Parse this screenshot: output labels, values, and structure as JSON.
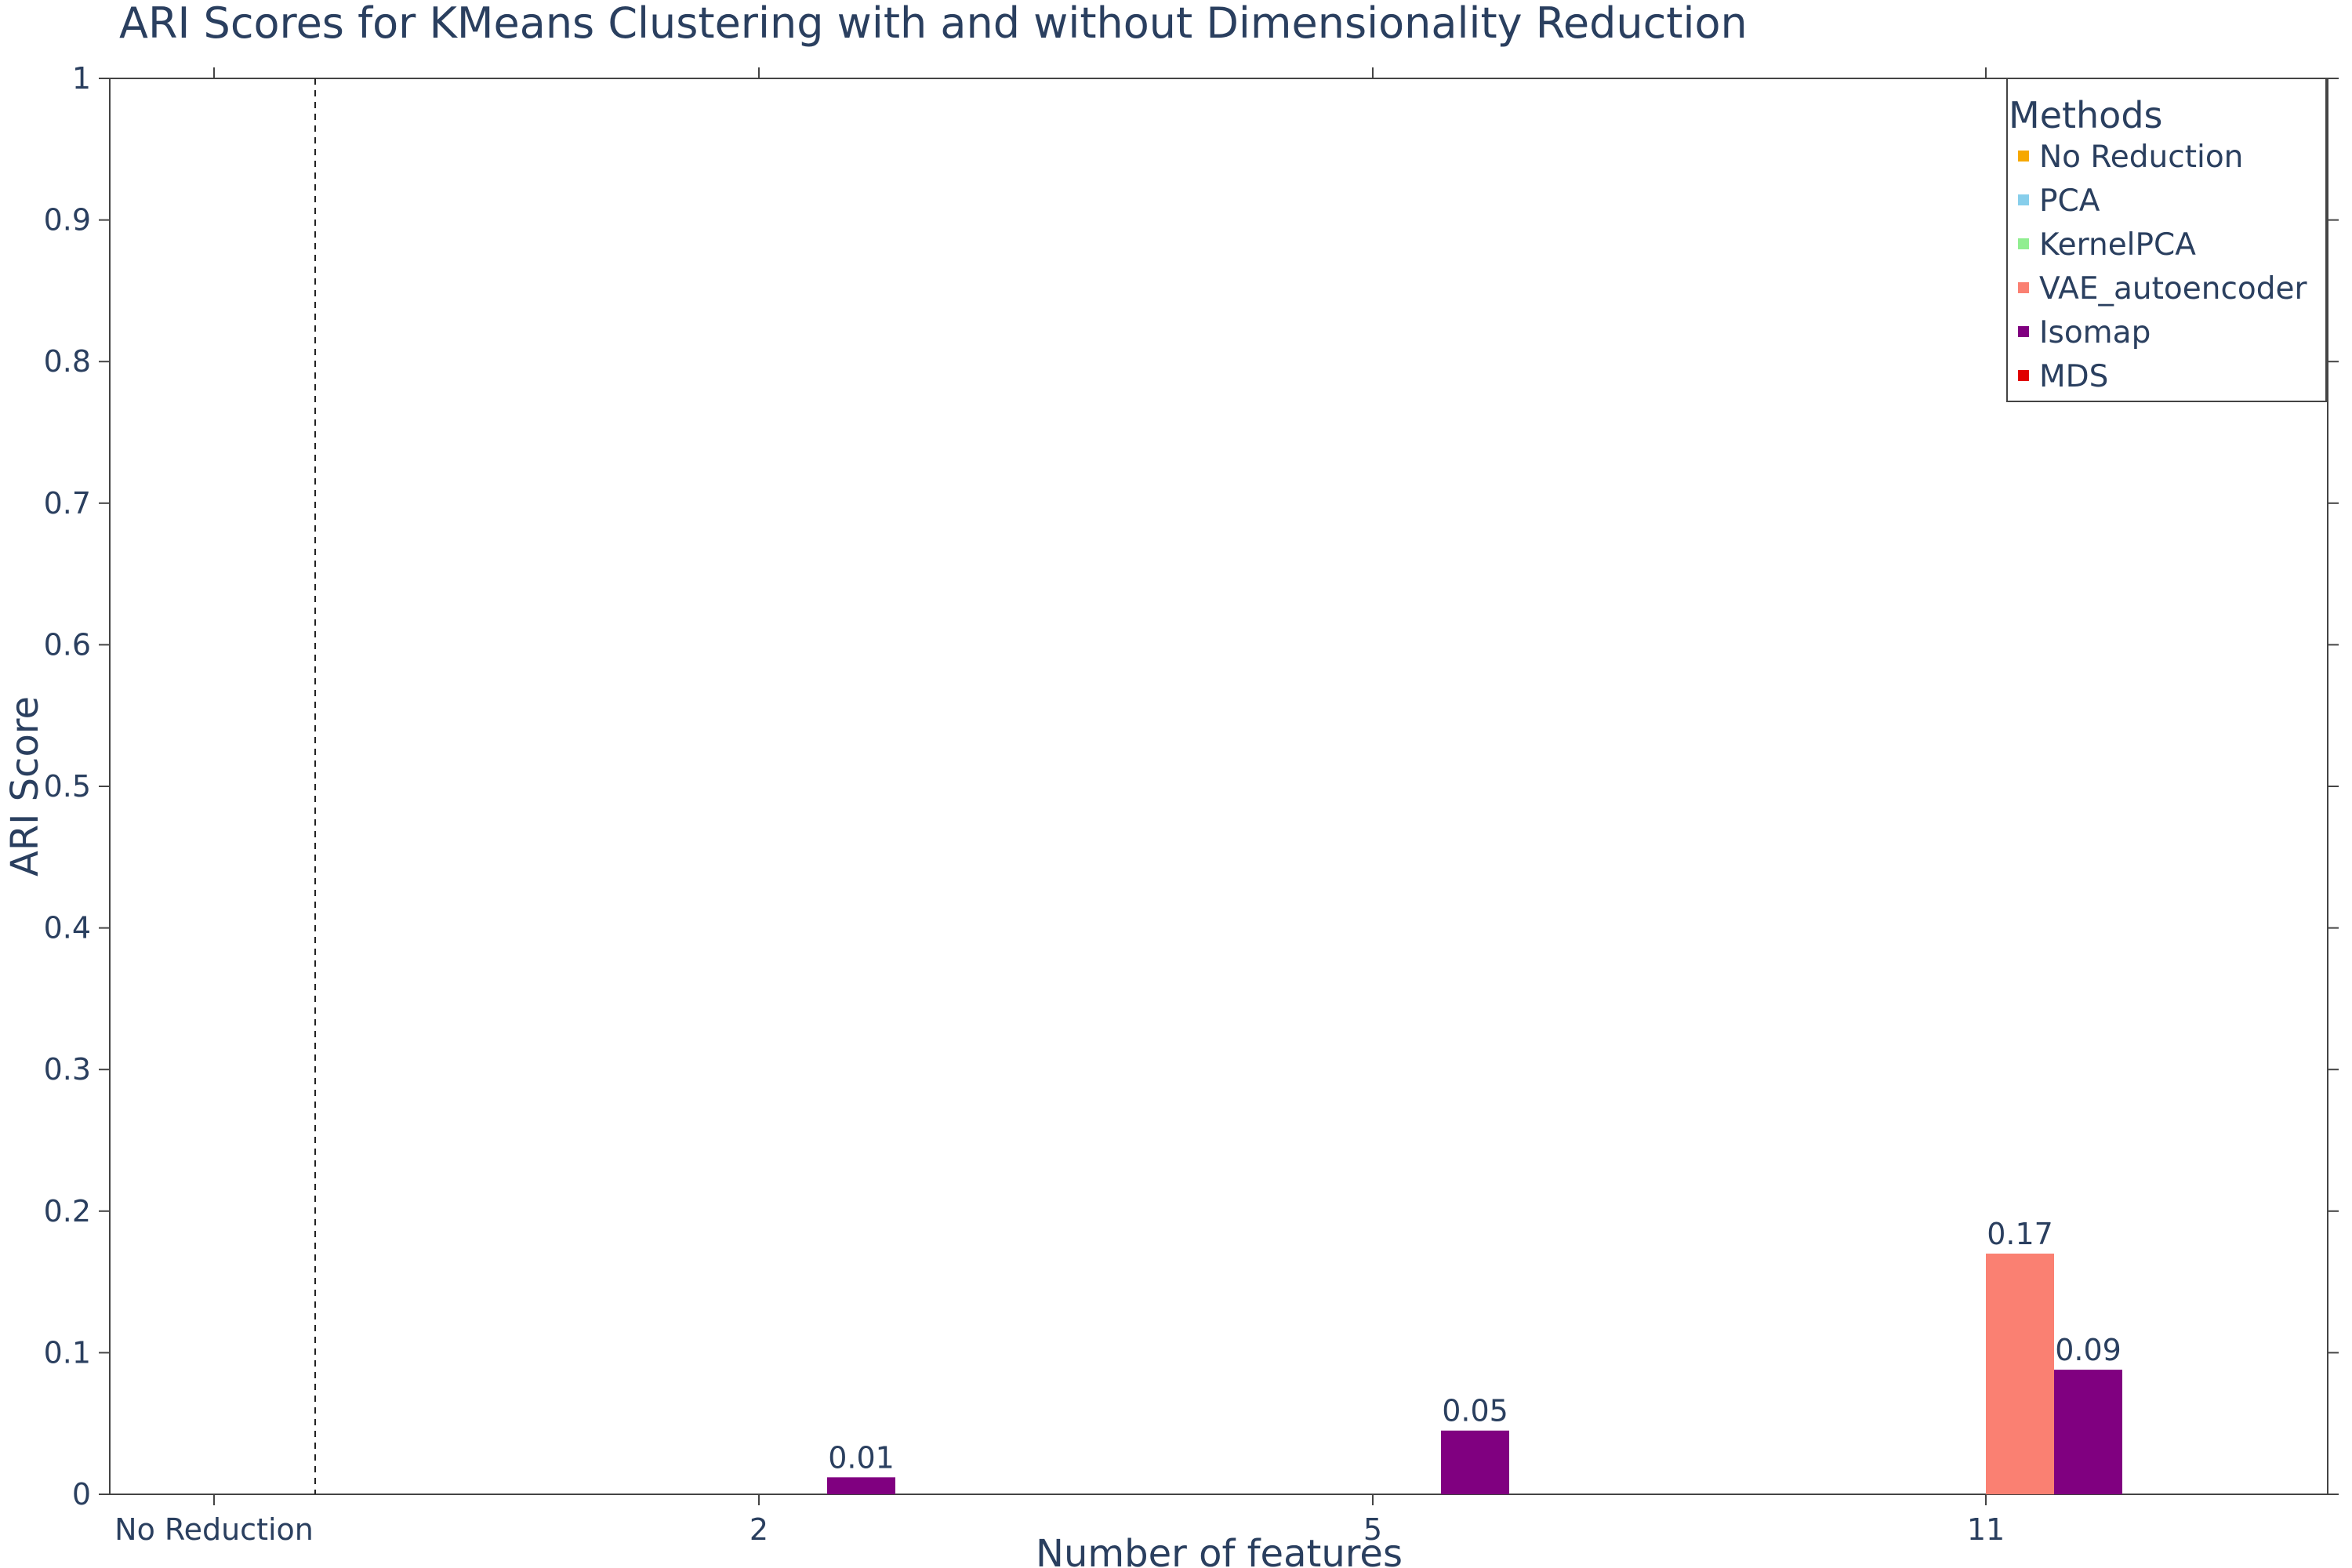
{
  "chart_data": {
    "type": "bar",
    "title": "ARI Scores for KMeans Clustering with and without Dimensionality Reduction",
    "xlabel": "Number of features",
    "ylabel": "ARI Score",
    "categories": [
      "No Reduction",
      "2",
      "5",
      "11"
    ],
    "ylim": [
      0,
      1
    ],
    "yticks": [
      "0",
      "0.1",
      "0.2",
      "0.3",
      "0.4",
      "0.5",
      "0.6",
      "0.7",
      "0.8",
      "0.9",
      "1"
    ],
    "legend": {
      "title": "Methods",
      "position": "top-right"
    },
    "series": [
      {
        "name": "No Reduction",
        "color": "#f6a800",
        "values": [
          0,
          0,
          0,
          0
        ]
      },
      {
        "name": "PCA",
        "color": "#87ceeb",
        "values": [
          0,
          0,
          0,
          0
        ]
      },
      {
        "name": "KernelPCA",
        "color": "#90ee90",
        "values": [
          0,
          0,
          0,
          0
        ]
      },
      {
        "name": "VAE_autoencoder",
        "color": "#fa8072",
        "values": [
          0,
          0,
          0,
          0.17
        ]
      },
      {
        "name": "Isomap",
        "color": "#800080",
        "values": [
          0,
          0.012,
          0.045,
          0.088
        ]
      },
      {
        "name": "MDS",
        "color": "#e00000",
        "values": [
          0,
          0,
          0,
          0
        ]
      }
    ],
    "data_labels": [
      {
        "series": "Isomap",
        "category": "2",
        "text": "0.01"
      },
      {
        "series": "Isomap",
        "category": "5",
        "text": "0.05"
      },
      {
        "series": "VAE_autoencoder",
        "category": "11",
        "text": "0.17"
      },
      {
        "series": "Isomap",
        "category": "11",
        "text": "0.09"
      }
    ],
    "separator_line": {
      "style": "dashed",
      "between_categories": [
        "No Reduction",
        "2"
      ]
    }
  }
}
